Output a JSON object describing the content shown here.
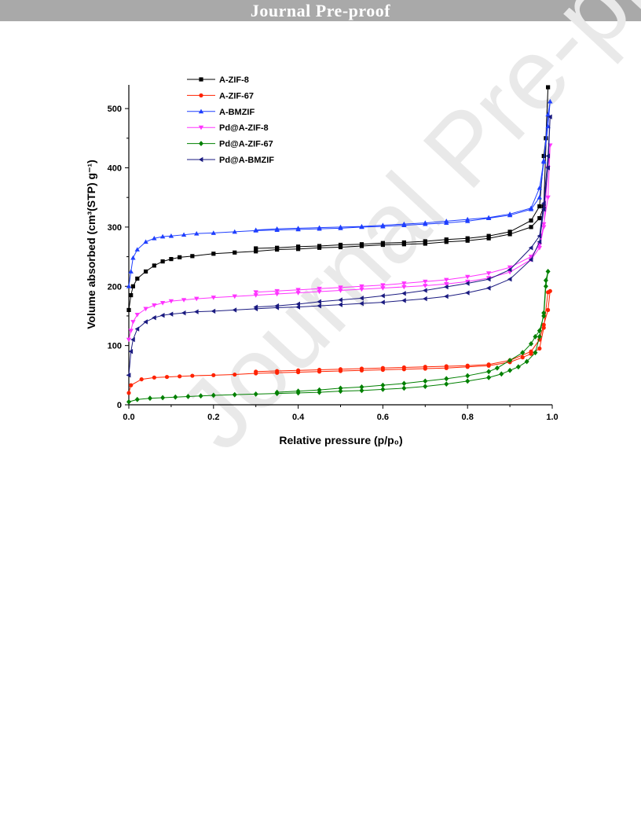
{
  "banner": {
    "text": "Journal Pre-proof"
  },
  "watermark": {
    "text": "Journal Pre-proof"
  },
  "chart_data": {
    "type": "line",
    "title": "",
    "xlabel": "Relative pressure (p/p₀)",
    "ylabel": "Volume absorbed (cm³(STP) g⁻¹)",
    "xlim": [
      0.0,
      1.0
    ],
    "ylim": [
      0,
      540
    ],
    "xticks": [
      "0.0",
      "0.2",
      "0.4",
      "0.6",
      "0.8",
      "1.0"
    ],
    "yticks": [
      "0",
      "100",
      "200",
      "300",
      "400",
      "500"
    ],
    "grid": false,
    "legend_position": "top-left",
    "series": [
      {
        "name": "A-ZIF-8",
        "color": "#000000",
        "marker": "square",
        "x": [
          0.0,
          0.005,
          0.01,
          0.02,
          0.04,
          0.06,
          0.08,
          0.1,
          0.12,
          0.15,
          0.2,
          0.25,
          0.3,
          0.35,
          0.4,
          0.45,
          0.5,
          0.55,
          0.6,
          0.65,
          0.7,
          0.75,
          0.8,
          0.85,
          0.9,
          0.95,
          0.97,
          0.98,
          0.99,
          0.985,
          0.98,
          0.97,
          0.95,
          0.9,
          0.85,
          0.8,
          0.75,
          0.7,
          0.65,
          0.6,
          0.55,
          0.5,
          0.45,
          0.4,
          0.35,
          0.3
        ],
        "y": [
          160,
          185,
          200,
          213,
          225,
          235,
          242,
          246,
          249,
          251,
          255,
          257,
          259,
          262,
          263,
          265,
          266,
          268,
          270,
          271,
          272,
          275,
          277,
          281,
          288,
          300,
          315,
          335,
          536,
          450,
          420,
          335,
          311,
          292,
          285,
          281,
          279,
          276,
          274,
          273,
          271,
          270,
          268,
          267,
          265,
          264
        ]
      },
      {
        "name": "A-ZIF-67",
        "color": "#ff2200",
        "marker": "circle",
        "x": [
          0.0,
          0.005,
          0.03,
          0.06,
          0.09,
          0.12,
          0.15,
          0.2,
          0.25,
          0.3,
          0.35,
          0.4,
          0.45,
          0.5,
          0.55,
          0.6,
          0.65,
          0.7,
          0.75,
          0.8,
          0.85,
          0.9,
          0.93,
          0.95,
          0.97,
          0.98,
          0.99,
          0.995,
          0.99,
          0.98,
          0.97,
          0.95,
          0.9,
          0.85,
          0.8,
          0.75,
          0.7,
          0.65,
          0.6,
          0.55,
          0.5,
          0.45,
          0.4,
          0.35,
          0.3
        ],
        "y": [
          20,
          33,
          43,
          46,
          47,
          48,
          49,
          50,
          51,
          53,
          54,
          55,
          56,
          57,
          58,
          59,
          60,
          61,
          62,
          64,
          66,
          72,
          80,
          86,
          95,
          130,
          190,
          192,
          160,
          135,
          110,
          90,
          75,
          68,
          66,
          65,
          64,
          63,
          62,
          61,
          60,
          59,
          58,
          57,
          56
        ]
      },
      {
        "name": "A-BMZIF",
        "color": "#1f3fff",
        "marker": "triangle-up",
        "x": [
          0.0,
          0.005,
          0.01,
          0.02,
          0.04,
          0.06,
          0.08,
          0.1,
          0.13,
          0.16,
          0.2,
          0.25,
          0.3,
          0.35,
          0.4,
          0.45,
          0.5,
          0.55,
          0.6,
          0.65,
          0.7,
          0.75,
          0.8,
          0.85,
          0.9,
          0.95,
          0.97,
          0.98,
          0.99,
          0.995,
          0.99,
          0.98,
          0.97,
          0.95,
          0.9,
          0.85,
          0.8,
          0.75,
          0.7,
          0.65,
          0.6,
          0.55,
          0.5,
          0.45,
          0.4,
          0.35,
          0.3
        ],
        "y": [
          200,
          225,
          248,
          262,
          275,
          281,
          284,
          285,
          287,
          289,
          290,
          292,
          294,
          295,
          296,
          297,
          298,
          300,
          301,
          303,
          305,
          307,
          310,
          315,
          320,
          330,
          350,
          410,
          490,
          512,
          470,
          412,
          366,
          332,
          322,
          316,
          313,
          310,
          307,
          305,
          303,
          301,
          300,
          299,
          298,
          297,
          295
        ]
      },
      {
        "name": "Pd@A-ZIF-8",
        "color": "#ff33ff",
        "marker": "triangle-down",
        "x": [
          0.0,
          0.005,
          0.01,
          0.02,
          0.04,
          0.06,
          0.08,
          0.1,
          0.13,
          0.16,
          0.2,
          0.25,
          0.3,
          0.35,
          0.4,
          0.45,
          0.5,
          0.55,
          0.6,
          0.65,
          0.7,
          0.75,
          0.8,
          0.85,
          0.9,
          0.95,
          0.97,
          0.98,
          0.99,
          0.995,
          0.99,
          0.98,
          0.97,
          0.95,
          0.9,
          0.85,
          0.8,
          0.75,
          0.7,
          0.65,
          0.6,
          0.55,
          0.5,
          0.45,
          0.4,
          0.35,
          0.3
        ],
        "y": [
          110,
          125,
          140,
          152,
          162,
          168,
          172,
          175,
          177,
          179,
          181,
          183,
          185,
          187,
          189,
          191,
          193,
          195,
          197,
          199,
          201,
          204,
          208,
          214,
          224,
          245,
          265,
          300,
          400,
          438,
          350,
          305,
          270,
          250,
          232,
          222,
          216,
          211,
          208,
          205,
          202,
          200,
          198,
          196,
          194,
          192,
          190
        ]
      },
      {
        "name": "Pd@A-ZIF-67",
        "color": "#008000",
        "marker": "diamond",
        "x": [
          0.0,
          0.02,
          0.05,
          0.08,
          0.11,
          0.14,
          0.17,
          0.2,
          0.25,
          0.3,
          0.35,
          0.4,
          0.45,
          0.5,
          0.55,
          0.6,
          0.65,
          0.7,
          0.75,
          0.8,
          0.85,
          0.88,
          0.9,
          0.92,
          0.94,
          0.96,
          0.97,
          0.98,
          0.985,
          0.99,
          0.985,
          0.98,
          0.97,
          0.96,
          0.95,
          0.93,
          0.9,
          0.87,
          0.85,
          0.8,
          0.75,
          0.7,
          0.65,
          0.6,
          0.55,
          0.5,
          0.45,
          0.4,
          0.35
        ],
        "y": [
          5,
          9,
          11,
          12,
          13,
          14,
          15,
          16,
          17,
          18,
          19,
          20,
          21,
          23,
          24,
          26,
          28,
          31,
          35,
          40,
          46,
          52,
          58,
          64,
          73,
          88,
          115,
          155,
          210,
          225,
          200,
          150,
          125,
          115,
          103,
          88,
          75,
          62,
          56,
          49,
          44,
          40,
          36,
          33,
          30,
          28,
          25,
          23,
          21
        ]
      },
      {
        "name": "Pd@A-BMZIF",
        "color": "#1a1a80",
        "marker": "triangle-left",
        "x": [
          0.0,
          0.005,
          0.01,
          0.02,
          0.04,
          0.06,
          0.08,
          0.1,
          0.13,
          0.16,
          0.2,
          0.25,
          0.3,
          0.35,
          0.4,
          0.45,
          0.5,
          0.55,
          0.6,
          0.65,
          0.7,
          0.75,
          0.8,
          0.85,
          0.9,
          0.95,
          0.97,
          0.98,
          0.99,
          0.995,
          0.99,
          0.98,
          0.97,
          0.95,
          0.9,
          0.85,
          0.8,
          0.75,
          0.7,
          0.65,
          0.6,
          0.55,
          0.5,
          0.45,
          0.4,
          0.35,
          0.3
        ],
        "y": [
          50,
          90,
          110,
          128,
          140,
          147,
          151,
          153,
          155,
          157,
          158,
          160,
          162,
          164,
          165,
          167,
          169,
          171,
          173,
          176,
          179,
          183,
          189,
          197,
          212,
          245,
          275,
          330,
          400,
          486,
          420,
          340,
          285,
          265,
          228,
          212,
          205,
          199,
          193,
          188,
          184,
          180,
          177,
          174,
          170,
          167,
          165
        ]
      }
    ]
  }
}
